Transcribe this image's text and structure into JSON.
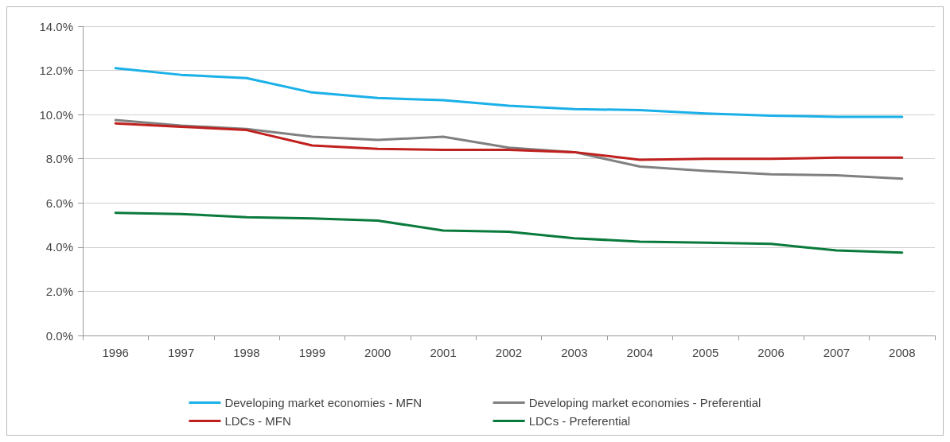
{
  "chart_data": {
    "type": "line",
    "categories": [
      "1996",
      "1997",
      "1998",
      "1999",
      "2000",
      "2001",
      "2002",
      "2003",
      "2004",
      "2005",
      "2006",
      "2007",
      "2008"
    ],
    "series": [
      {
        "name": "Developing market economies - MFN",
        "color": "#1ab0e8",
        "values": [
          12.1,
          11.8,
          11.65,
          11.0,
          10.75,
          10.65,
          10.4,
          10.25,
          10.2,
          10.05,
          9.95,
          9.9,
          9.9
        ]
      },
      {
        "name": "Developing market economies - Preferential",
        "color": "#808080",
        "values": [
          9.75,
          9.5,
          9.35,
          9.0,
          8.85,
          9.0,
          8.5,
          8.3,
          7.65,
          7.45,
          7.3,
          7.25,
          7.1
        ]
      },
      {
        "name": "LDCs - MFN",
        "color": "#c0201e",
        "values": [
          9.6,
          9.45,
          9.3,
          8.6,
          8.45,
          8.4,
          8.4,
          8.3,
          7.95,
          8.0,
          8.0,
          8.05,
          8.05
        ]
      },
      {
        "name": "LDCs - Preferential",
        "color": "#0a7a3c",
        "values": [
          5.55,
          5.5,
          5.35,
          5.3,
          5.2,
          4.75,
          4.7,
          4.4,
          4.25,
          4.2,
          4.15,
          3.85,
          3.75
        ]
      }
    ],
    "ylim": [
      0,
      14
    ],
    "yticks": [
      {
        "value": 0,
        "label": "0.0%"
      },
      {
        "value": 2,
        "label": "2.0%"
      },
      {
        "value": 4,
        "label": "4.0%"
      },
      {
        "value": 6,
        "label": "6.0%"
      },
      {
        "value": 8,
        "label": "8.0%"
      },
      {
        "value": 10,
        "label": "10.0%"
      },
      {
        "value": 12,
        "label": "12.0%"
      },
      {
        "value": 14,
        "label": "14.0%"
      }
    ],
    "grid": "y",
    "legend": "bottom",
    "marker": "none",
    "line_style": "solid"
  }
}
